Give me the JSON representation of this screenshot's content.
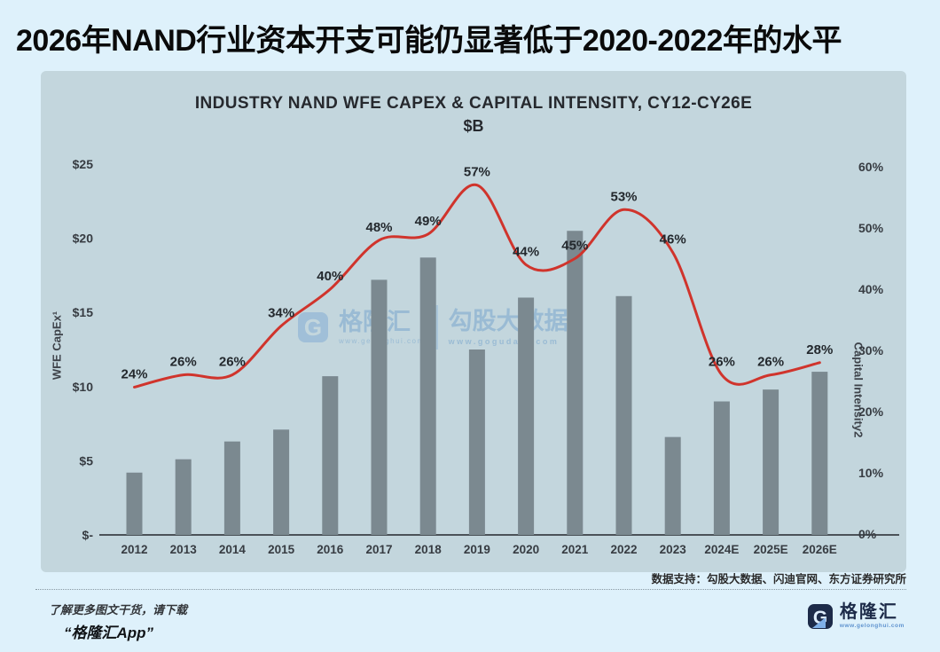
{
  "header": {
    "title": "2026年NAND行业资本开支可能仍显著低于2020-2022年的水平"
  },
  "chart_data": {
    "type": "combo",
    "title": "INDUSTRY NAND WFE CAPEX & CAPITAL INTENSITY, CY12-CY26E",
    "subtitle": "$B",
    "categories": [
      "2012",
      "2013",
      "2014",
      "2015",
      "2016",
      "2017",
      "2018",
      "2019",
      "2020",
      "2021",
      "2022",
      "2023",
      "2024E",
      "2025E",
      "2026E"
    ],
    "series": [
      {
        "name": "WFE CapEx ($B)",
        "type": "bar",
        "values": [
          4.2,
          5.1,
          6.3,
          7.1,
          10.7,
          17.2,
          18.7,
          12.5,
          16.0,
          20.5,
          16.1,
          6.6,
          9.0,
          9.8,
          11.0
        ]
      },
      {
        "name": "Capital Intensity (%)",
        "type": "line",
        "values": [
          24,
          26,
          26,
          34,
          40,
          48,
          49,
          57,
          44,
          45,
          53,
          46,
          26,
          26,
          28
        ]
      }
    ],
    "left_axis": {
      "label": "WFE CapEx¹",
      "ticks": [
        "$25",
        "$20",
        "$15",
        "$10",
        "$5",
        "$-"
      ],
      "range": [
        0,
        25
      ]
    },
    "right_axis": {
      "label": "Capital Intensity2",
      "ticks": [
        "60%",
        "50%",
        "40%",
        "30%",
        "20%",
        "10%",
        "0%"
      ],
      "range": [
        0,
        60
      ]
    },
    "grid": false,
    "legend": "none",
    "colors": {
      "bar": "#7b8990",
      "line": "#d0342c",
      "label": "#23282d",
      "tick": "#373c42",
      "axis": "#4b5258"
    }
  },
  "watermark": {
    "g_glyph": "G",
    "brand": "格隆汇",
    "brand_url": "www.gelonghui.com",
    "partner": "勾股大数据",
    "partner_url": "www.gogudata.com"
  },
  "footer": {
    "data_support": "数据支持：勾股大数据、闪迪官网、东方证券研究所",
    "promo_line1": "了解更多图文干货，请下载",
    "promo_line2": "“格隆汇App”",
    "logo_name": "格隆汇",
    "logo_url": "www.gelonghui.com"
  }
}
